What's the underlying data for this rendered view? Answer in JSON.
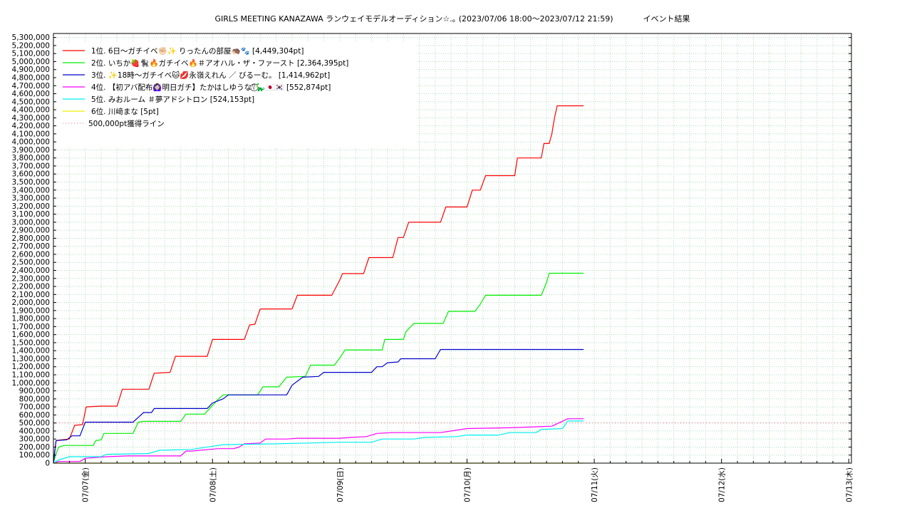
{
  "title": "GIRLS MEETING KANAZAWA ランウェイモデルオーディション☆.｡ (2023/07/06 18:00～2023/07/12 21:59)            イベント結果",
  "chart_data": {
    "type": "line",
    "ylim": [
      0,
      5350000
    ],
    "y_tick_step": 100000,
    "x_range": [
      "2023-07-06 18:00",
      "2023-07-13 00:30"
    ],
    "x_ticks": [
      {
        "at": "2023-07-07 00:00",
        "label": "07/07(金)"
      },
      {
        "at": "2023-07-08 00:00",
        "label": "07/08(土)"
      },
      {
        "at": "2023-07-09 00:00",
        "label": "07/09(日)"
      },
      {
        "at": "2023-07-10 00:00",
        "label": "07/10(月)"
      },
      {
        "at": "2023-07-11 00:00",
        "label": "07/11(火)"
      },
      {
        "at": "2023-07-12 00:00",
        "label": "07/12(水)"
      },
      {
        "at": "2023-07-13 00:00",
        "label": "07/13(木)"
      }
    ],
    "grid": true,
    "legend_position": "top-left",
    "series": [
      {
        "name": "1位. 6日〜ガチイベ✊🏻✨ りったんの部屋🦔🐾 [4,449,304pt]",
        "color": "#ff0000",
        "points": [
          [
            "2023-07-06 18:00",
            0
          ],
          [
            "2023-07-06 18:15",
            150000
          ],
          [
            "2023-07-06 18:30",
            280000
          ],
          [
            "2023-07-06 19:30",
            290000
          ],
          [
            "2023-07-06 21:00",
            300000
          ],
          [
            "2023-07-06 22:00",
            470000
          ],
          [
            "2023-07-06 23:30",
            480000
          ],
          [
            "2023-07-07 00:10",
            700000
          ],
          [
            "2023-07-07 03:00",
            710000
          ],
          [
            "2023-07-07 06:00",
            710000
          ],
          [
            "2023-07-07 07:00",
            920000
          ],
          [
            "2023-07-07 12:00",
            920000
          ],
          [
            "2023-07-07 13:00",
            1120000
          ],
          [
            "2023-07-07 16:00",
            1130000
          ],
          [
            "2023-07-07 17:00",
            1330000
          ],
          [
            "2023-07-07 23:00",
            1330000
          ],
          [
            "2023-07-08 00:00",
            1540000
          ],
          [
            "2023-07-08 06:00",
            1540000
          ],
          [
            "2023-07-08 07:00",
            1720000
          ],
          [
            "2023-07-08 08:00",
            1730000
          ],
          [
            "2023-07-08 09:00",
            1920000
          ],
          [
            "2023-07-08 15:00",
            1920000
          ],
          [
            "2023-07-08 16:00",
            2090000
          ],
          [
            "2023-07-08 22:30",
            2090000
          ],
          [
            "2023-07-09 00:00",
            2280000
          ],
          [
            "2023-07-09 00:30",
            2360000
          ],
          [
            "2023-07-09 04:30",
            2360000
          ],
          [
            "2023-07-09 05:30",
            2560000
          ],
          [
            "2023-07-09 10:00",
            2560000
          ],
          [
            "2023-07-09 11:00",
            2810000
          ],
          [
            "2023-07-09 12:00",
            2810000
          ],
          [
            "2023-07-09 13:00",
            3000000
          ],
          [
            "2023-07-09 19:00",
            3000000
          ],
          [
            "2023-07-09 20:00",
            3190000
          ],
          [
            "2023-07-10 00:00",
            3190000
          ],
          [
            "2023-07-10 01:00",
            3400000
          ],
          [
            "2023-07-10 02:30",
            3400000
          ],
          [
            "2023-07-10 03:30",
            3580000
          ],
          [
            "2023-07-10 09:00",
            3580000
          ],
          [
            "2023-07-10 09:30",
            3800000
          ],
          [
            "2023-07-10 14:00",
            3800000
          ],
          [
            "2023-07-10 14:30",
            3980000
          ],
          [
            "2023-07-10 15:30",
            3980000
          ],
          [
            "2023-07-10 16:00",
            4100000
          ],
          [
            "2023-07-10 16:30",
            4300000
          ],
          [
            "2023-07-10 17:00",
            4449304
          ],
          [
            "2023-07-10 21:59",
            4449304
          ]
        ]
      },
      {
        "name": "2位. いちか🍓🐈‍⬛🔥ガチイベ🔥＃アオハル・ザ・ファースト [2,364,395pt]",
        "color": "#00ee00",
        "points": [
          [
            "2023-07-06 18:00",
            0
          ],
          [
            "2023-07-06 18:30",
            120000
          ],
          [
            "2023-07-06 19:00",
            200000
          ],
          [
            "2023-07-06 20:00",
            220000
          ],
          [
            "2023-07-07 01:30",
            220000
          ],
          [
            "2023-07-07 02:00",
            280000
          ],
          [
            "2023-07-07 03:00",
            290000
          ],
          [
            "2023-07-07 03:30",
            370000
          ],
          [
            "2023-07-07 09:00",
            370000
          ],
          [
            "2023-07-07 10:00",
            510000
          ],
          [
            "2023-07-07 11:00",
            520000
          ],
          [
            "2023-07-07 18:00",
            520000
          ],
          [
            "2023-07-07 19:00",
            610000
          ],
          [
            "2023-07-07 22:30",
            610000
          ],
          [
            "2023-07-08 00:00",
            720000
          ],
          [
            "2023-07-08 01:00",
            790000
          ],
          [
            "2023-07-08 02:00",
            850000
          ],
          [
            "2023-07-08 08:30",
            850000
          ],
          [
            "2023-07-08 09:30",
            950000
          ],
          [
            "2023-07-08 12:30",
            950000
          ],
          [
            "2023-07-08 14:00",
            1070000
          ],
          [
            "2023-07-08 17:30",
            1080000
          ],
          [
            "2023-07-08 18:30",
            1220000
          ],
          [
            "2023-07-08 23:00",
            1220000
          ],
          [
            "2023-07-09 00:00",
            1310000
          ],
          [
            "2023-07-09 01:00",
            1410000
          ],
          [
            "2023-07-09 08:00",
            1410000
          ],
          [
            "2023-07-09 08:30",
            1540000
          ],
          [
            "2023-07-09 12:00",
            1540000
          ],
          [
            "2023-07-09 12:30",
            1640000
          ],
          [
            "2023-07-09 14:00",
            1740000
          ],
          [
            "2023-07-09 19:30",
            1740000
          ],
          [
            "2023-07-09 20:30",
            1890000
          ],
          [
            "2023-07-10 01:30",
            1890000
          ],
          [
            "2023-07-10 02:30",
            1980000
          ],
          [
            "2023-07-10 03:30",
            2090000
          ],
          [
            "2023-07-10 08:00",
            2090000
          ],
          [
            "2023-07-10 14:00",
            2090000
          ],
          [
            "2023-07-10 15:00",
            2250000
          ],
          [
            "2023-07-10 15:30",
            2364395
          ],
          [
            "2023-07-10 21:59",
            2364395
          ]
        ]
      },
      {
        "name": "3位. ✨18時〜ガチイベ🐱💋永嶺えれん ／ びるーむ。 [1,414,962pt]",
        "color": "#0000cc",
        "points": [
          [
            "2023-07-06 18:00",
            0
          ],
          [
            "2023-07-06 18:30",
            280000
          ],
          [
            "2023-07-06 20:30",
            290000
          ],
          [
            "2023-07-06 21:30",
            340000
          ],
          [
            "2023-07-06 23:00",
            340000
          ],
          [
            "2023-07-07 00:00",
            510000
          ],
          [
            "2023-07-07 09:00",
            510000
          ],
          [
            "2023-07-07 10:00",
            570000
          ],
          [
            "2023-07-07 11:00",
            630000
          ],
          [
            "2023-07-07 12:30",
            630000
          ],
          [
            "2023-07-07 13:00",
            680000
          ],
          [
            "2023-07-07 23:00",
            680000
          ],
          [
            "2023-07-08 00:00",
            750000
          ],
          [
            "2023-07-08 02:00",
            800000
          ],
          [
            "2023-07-08 03:00",
            850000
          ],
          [
            "2023-07-08 14:00",
            850000
          ],
          [
            "2023-07-08 15:00",
            970000
          ],
          [
            "2023-07-08 17:00",
            1070000
          ],
          [
            "2023-07-08 20:00",
            1080000
          ],
          [
            "2023-07-08 21:00",
            1130000
          ],
          [
            "2023-07-09 01:30",
            1130000
          ],
          [
            "2023-07-09 06:00",
            1130000
          ],
          [
            "2023-07-09 07:00",
            1200000
          ],
          [
            "2023-07-09 08:00",
            1200000
          ],
          [
            "2023-07-09 09:00",
            1250000
          ],
          [
            "2023-07-09 11:00",
            1260000
          ],
          [
            "2023-07-09 11:30",
            1300000
          ],
          [
            "2023-07-09 18:00",
            1300000
          ],
          [
            "2023-07-09 19:00",
            1414962
          ],
          [
            "2023-07-10 21:59",
            1414962
          ]
        ]
      },
      {
        "name": "4位. 【初アバ配布🙆🏻‍♀️明日ガチ】たかはしゆうな⍢⃝🦕🇯🇵🇰🇷 [552,874pt]",
        "color": "#ff00ff",
        "points": [
          [
            "2023-07-06 18:00",
            0
          ],
          [
            "2023-07-06 19:00",
            20000
          ],
          [
            "2023-07-06 23:00",
            20000
          ],
          [
            "2023-07-07 00:00",
            60000
          ],
          [
            "2023-07-07 04:00",
            80000
          ],
          [
            "2023-07-07 08:00",
            90000
          ],
          [
            "2023-07-07 18:00",
            90000
          ],
          [
            "2023-07-07 19:00",
            150000
          ],
          [
            "2023-07-07 20:00",
            150000
          ],
          [
            "2023-07-08 01:00",
            180000
          ],
          [
            "2023-07-08 04:00",
            180000
          ],
          [
            "2023-07-08 05:00",
            200000
          ],
          [
            "2023-07-08 06:00",
            240000
          ],
          [
            "2023-07-08 09:00",
            250000
          ],
          [
            "2023-07-08 10:00",
            300000
          ],
          [
            "2023-07-08 14:00",
            300000
          ],
          [
            "2023-07-08 16:00",
            310000
          ],
          [
            "2023-07-09 00:00",
            310000
          ],
          [
            "2023-07-09 02:00",
            320000
          ],
          [
            "2023-07-09 05:00",
            330000
          ],
          [
            "2023-07-09 07:00",
            370000
          ],
          [
            "2023-07-09 10:00",
            380000
          ],
          [
            "2023-07-09 19:00",
            380000
          ],
          [
            "2023-07-09 21:00",
            400000
          ],
          [
            "2023-07-10 00:00",
            430000
          ],
          [
            "2023-07-10 08:00",
            440000
          ],
          [
            "2023-07-10 16:00",
            460000
          ],
          [
            "2023-07-10 19:00",
            552874
          ],
          [
            "2023-07-10 21:59",
            552874
          ]
        ]
      },
      {
        "name": "5位. みおルーム ＃夢アドシトロン [524,153pt]",
        "color": "#00eeee",
        "points": [
          [
            "2023-07-06 18:00",
            0
          ],
          [
            "2023-07-06 19:00",
            40000
          ],
          [
            "2023-07-06 21:00",
            80000
          ],
          [
            "2023-07-07 03:00",
            80000
          ],
          [
            "2023-07-07 04:00",
            110000
          ],
          [
            "2023-07-07 12:00",
            120000
          ],
          [
            "2023-07-07 14:00",
            160000
          ],
          [
            "2023-07-07 20:00",
            170000
          ],
          [
            "2023-07-08 00:00",
            210000
          ],
          [
            "2023-07-08 02:00",
            230000
          ],
          [
            "2023-07-08 12:00",
            240000
          ],
          [
            "2023-07-08 18:00",
            250000
          ],
          [
            "2023-07-09 00:00",
            260000
          ],
          [
            "2023-07-09 06:00",
            260000
          ],
          [
            "2023-07-09 08:00",
            300000
          ],
          [
            "2023-07-09 14:00",
            300000
          ],
          [
            "2023-07-09 16:00",
            320000
          ],
          [
            "2023-07-09 22:00",
            330000
          ],
          [
            "2023-07-10 00:00",
            350000
          ],
          [
            "2023-07-10 06:00",
            350000
          ],
          [
            "2023-07-10 08:00",
            380000
          ],
          [
            "2023-07-10 13:00",
            380000
          ],
          [
            "2023-07-10 14:00",
            420000
          ],
          [
            "2023-07-10 18:00",
            430000
          ],
          [
            "2023-07-10 19:00",
            524153
          ],
          [
            "2023-07-10 21:59",
            524153
          ]
        ]
      },
      {
        "name": "6位. 川﨑まな [5pt]",
        "color": "#eeee00",
        "points": [
          [
            "2023-07-06 18:00",
            0
          ],
          [
            "2023-07-10 21:59",
            5
          ]
        ]
      }
    ],
    "reference_line": {
      "name": "500,000pt獲得ライン",
      "value": 500000,
      "color": "#ff6688",
      "style": "dotted"
    }
  }
}
